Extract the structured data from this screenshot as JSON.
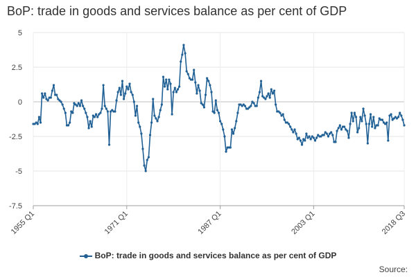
{
  "chart_data": {
    "type": "line",
    "title": "BoP: trade in goods and services balance as per cent of GDP",
    "xlabel": "",
    "ylabel": "",
    "x_ticks": [
      "1955 Q1",
      "1971 Q1",
      "1987 Q1",
      "2003 Q1",
      "2018 Q3"
    ],
    "y_ticks": [
      "5",
      "2.5",
      "0",
      "-2.5",
      "-5",
      "-7.5"
    ],
    "ylim": [
      -7.5,
      5
    ],
    "x_start": "1955 Q1",
    "quarters": 255,
    "grid": true,
    "legend": "bottom",
    "series": [
      {
        "name": "BoP: trade in goods and services balance as per cent of GDP",
        "color": "#206095",
        "points": [
          [
            0,
            -1.6
          ],
          [
            1,
            -1.6
          ],
          [
            2,
            -1.5
          ],
          [
            3,
            -1.6
          ],
          [
            4,
            -1.1
          ],
          [
            5,
            -1.5
          ],
          [
            6,
            0.6
          ],
          [
            7,
            0.3
          ],
          [
            8,
            0.6
          ],
          [
            9,
            0.2
          ],
          [
            10,
            0.1
          ],
          [
            11,
            0.3
          ],
          [
            12,
            0.3
          ],
          [
            13,
            0.8
          ],
          [
            14,
            1.2
          ],
          [
            15,
            0.5
          ],
          [
            16,
            0.5
          ],
          [
            17,
            0.2
          ],
          [
            18,
            0.1
          ],
          [
            19,
            0.0
          ],
          [
            20,
            -0.2
          ],
          [
            21,
            -0.5
          ],
          [
            22,
            -0.8
          ],
          [
            23,
            -1.7
          ],
          [
            24,
            -1.7
          ],
          [
            25,
            -1.5
          ],
          [
            26,
            -0.7
          ],
          [
            27,
            -0.8
          ],
          [
            28,
            -0.1
          ],
          [
            29,
            -0.2
          ],
          [
            30,
            -0.3
          ],
          [
            31,
            -0.1
          ],
          [
            32,
            -0.3
          ],
          [
            33,
            0.1
          ],
          [
            34,
            -0.3
          ],
          [
            35,
            -0.5
          ],
          [
            36,
            -0.8
          ],
          [
            37,
            -1.1
          ],
          [
            38,
            -1.9
          ],
          [
            39,
            -1.4
          ],
          [
            40,
            -1.8
          ],
          [
            41,
            -1.0
          ],
          [
            42,
            -1.1
          ],
          [
            43,
            -0.9
          ],
          [
            44,
            -1.1
          ],
          [
            45,
            -0.9
          ],
          [
            46,
            -0.8
          ],
          [
            47,
            -0.5
          ],
          [
            48,
            1.2
          ],
          [
            49,
            -0.3
          ],
          [
            50,
            -0.5
          ],
          [
            51,
            -0.7
          ],
          [
            52,
            -3.1
          ],
          [
            53,
            -0.7
          ],
          [
            54,
            -0.6
          ],
          [
            55,
            -0.7
          ],
          [
            56,
            -0.7
          ],
          [
            57,
            0.1
          ],
          [
            58,
            0.7
          ],
          [
            59,
            1.0
          ],
          [
            60,
            0.5
          ],
          [
            61,
            1.5
          ],
          [
            62,
            0.2
          ],
          [
            63,
            0.6
          ],
          [
            64,
            1.1
          ],
          [
            65,
            0.9
          ],
          [
            66,
            1.3
          ],
          [
            67,
            0.7
          ],
          [
            68,
            0.5
          ],
          [
            69,
            0.0
          ],
          [
            70,
            -1.0
          ],
          [
            71,
            -0.3
          ],
          [
            72,
            -1.5
          ],
          [
            73,
            -1.8
          ],
          [
            74,
            -2.3
          ],
          [
            75,
            -3.4
          ],
          [
            76,
            -4.6
          ],
          [
            77,
            -5.0
          ],
          [
            78,
            -4.2
          ],
          [
            79,
            -4.0
          ],
          [
            80,
            -2.4
          ],
          [
            81,
            -1.5
          ],
          [
            82,
            0.2
          ],
          [
            83,
            -1.0
          ],
          [
            84,
            -1.2
          ],
          [
            85,
            -1.4
          ],
          [
            86,
            -1.1
          ],
          [
            87,
            -0.6
          ],
          [
            88,
            -0.2
          ],
          [
            89,
            1.8
          ],
          [
            90,
            1.1
          ],
          [
            91,
            1.6
          ],
          [
            92,
            0.9
          ],
          [
            93,
            1.6
          ],
          [
            94,
            1.3
          ],
          [
            95,
            -0.9
          ],
          [
            96,
            0.7
          ],
          [
            97,
            1.0
          ],
          [
            98,
            0.7
          ],
          [
            99,
            0.9
          ],
          [
            100,
            1.1
          ],
          [
            101,
            2.9
          ],
          [
            102,
            3.4
          ],
          [
            103,
            4.1
          ],
          [
            104,
            3.5
          ],
          [
            105,
            2.2
          ],
          [
            106,
            2.0
          ],
          [
            107,
            1.7
          ],
          [
            108,
            1.6
          ],
          [
            109,
            1.6
          ],
          [
            110,
            2.3
          ],
          [
            111,
            1.4
          ],
          [
            112,
            0.6
          ],
          [
            113,
            1.2
          ],
          [
            114,
            0.8
          ],
          [
            115,
            -0.1
          ],
          [
            116,
            -0.2
          ],
          [
            117,
            -0.4
          ],
          [
            118,
            0.5
          ],
          [
            119,
            1.7
          ],
          [
            120,
            1.5
          ],
          [
            121,
            1.2
          ],
          [
            122,
            0.7
          ],
          [
            123,
            -0.7
          ],
          [
            124,
            -0.8
          ],
          [
            125,
            0.1
          ],
          [
            126,
            -0.6
          ],
          [
            127,
            -0.8
          ],
          [
            128,
            -1.4
          ],
          [
            129,
            -1.6
          ],
          [
            130,
            -2.0
          ],
          [
            131,
            -2.5
          ],
          [
            132,
            -3.6
          ],
          [
            133,
            -3.3
          ],
          [
            134,
            -3.3
          ],
          [
            135,
            -3.3
          ],
          [
            136,
            -2.0
          ],
          [
            137,
            -2.3
          ],
          [
            138,
            -1.9
          ],
          [
            139,
            -1.4
          ],
          [
            140,
            -0.8
          ],
          [
            141,
            -0.2
          ],
          [
            142,
            -0.2
          ],
          [
            143,
            -0.3
          ],
          [
            144,
            -0.2
          ],
          [
            145,
            -0.3
          ],
          [
            146,
            -0.5
          ],
          [
            147,
            -0.5
          ],
          [
            148,
            -0.4
          ],
          [
            149,
            -0.3
          ],
          [
            150,
            0.0
          ],
          [
            151,
            -0.1
          ],
          [
            152,
            -0.3
          ],
          [
            153,
            -0.3
          ],
          [
            154,
            0.3
          ],
          [
            155,
            0.7
          ],
          [
            156,
            1.5
          ],
          [
            157,
            0.4
          ],
          [
            158,
            0.3
          ],
          [
            159,
            0.2
          ],
          [
            160,
            0.4
          ],
          [
            161,
            0.6
          ],
          [
            162,
            0.3
          ],
          [
            163,
            0.9
          ],
          [
            164,
            0.6
          ],
          [
            165,
            0.8
          ],
          [
            166,
            -0.2
          ],
          [
            167,
            -0.7
          ],
          [
            168,
            -0.7
          ],
          [
            169,
            -0.8
          ],
          [
            170,
            -1.0
          ],
          [
            171,
            -0.9
          ],
          [
            172,
            -1.3
          ],
          [
            173,
            -1.5
          ],
          [
            174,
            -1.5
          ],
          [
            175,
            -1.6
          ],
          [
            176,
            -1.8
          ],
          [
            177,
            -2.0
          ],
          [
            178,
            -2.2
          ],
          [
            179,
            -2.0
          ],
          [
            180,
            -2.3
          ],
          [
            181,
            -2.7
          ],
          [
            182,
            -2.6
          ],
          [
            183,
            -2.8
          ],
          [
            184,
            -3.1
          ],
          [
            185,
            -2.7
          ],
          [
            186,
            -2.8
          ],
          [
            187,
            -2.3
          ],
          [
            188,
            -2.6
          ],
          [
            189,
            -2.5
          ],
          [
            190,
            -2.7
          ],
          [
            191,
            -2.5
          ],
          [
            192,
            -2.6
          ],
          [
            193,
            -2.8
          ],
          [
            194,
            -2.6
          ],
          [
            195,
            -2.4
          ],
          [
            196,
            -2.5
          ],
          [
            197,
            -2.5
          ],
          [
            198,
            -2.4
          ],
          [
            199,
            -2.4
          ],
          [
            200,
            -2.2
          ],
          [
            201,
            -2.3
          ],
          [
            202,
            -2.5
          ],
          [
            203,
            -2.3
          ],
          [
            204,
            -2.2
          ],
          [
            205,
            -2.4
          ],
          [
            206,
            -2.9
          ],
          [
            207,
            -2.9
          ],
          [
            208,
            -2.1
          ],
          [
            209,
            -1.9
          ],
          [
            210,
            -1.7
          ],
          [
            211,
            -2.0
          ],
          [
            212,
            -1.8
          ],
          [
            213,
            -1.8
          ],
          [
            214,
            -2.0
          ],
          [
            215,
            -2.1
          ],
          [
            216,
            -2.6
          ],
          [
            217,
            -1.6
          ],
          [
            218,
            -0.8
          ],
          [
            219,
            -1.4
          ],
          [
            220,
            -0.8
          ],
          [
            221,
            -1.1
          ],
          [
            222,
            -2.2
          ],
          [
            223,
            -1.9
          ],
          [
            224,
            -1.1
          ],
          [
            225,
            -1.4
          ],
          [
            226,
            -0.5
          ],
          [
            227,
            -1.0
          ],
          [
            228,
            -1.6
          ],
          [
            229,
            -3.0
          ],
          [
            230,
            -1.6
          ],
          [
            231,
            -0.9
          ],
          [
            232,
            -1.8
          ],
          [
            233,
            -1.1
          ],
          [
            234,
            -1.9
          ],
          [
            235,
            -1.7
          ],
          [
            236,
            -1.7
          ],
          [
            237,
            -1.2
          ],
          [
            238,
            -1.3
          ],
          [
            239,
            -1.3
          ],
          [
            240,
            -1.5
          ],
          [
            241,
            -1.6
          ],
          [
            242,
            -1.5
          ],
          [
            243,
            -2.8
          ],
          [
            244,
            -1.0
          ],
          [
            245,
            -0.9
          ],
          [
            246,
            -1.3
          ],
          [
            247,
            -1.2
          ],
          [
            248,
            -1.1
          ],
          [
            249,
            -1.2
          ],
          [
            250,
            -1.1
          ],
          [
            251,
            -0.8
          ],
          [
            252,
            -1.0
          ],
          [
            253,
            -1.3
          ],
          [
            254,
            -1.7
          ]
        ]
      }
    ],
    "source_label": "Source:"
  }
}
